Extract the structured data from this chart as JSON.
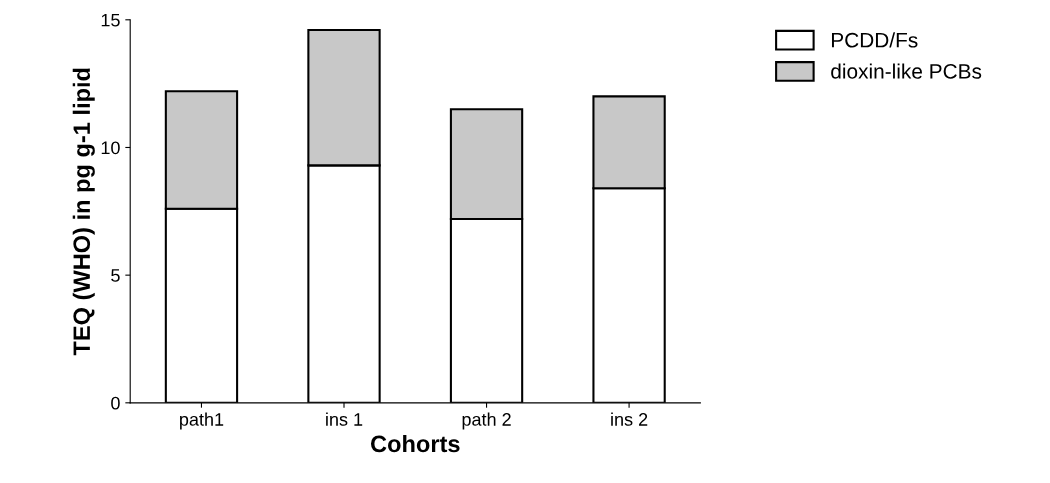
{
  "chart_data": {
    "type": "bar",
    "stacked": true,
    "xlabel": "Cohorts",
    "ylabel": "TEQ (WHO) in pg g-1 lipid",
    "categories": [
      "path1",
      "ins 1",
      "path 2",
      "ins 2"
    ],
    "series": [
      {
        "name": "PCDD/Fs",
        "color": "#ffffff",
        "values": [
          7.6,
          9.3,
          7.2,
          8.4
        ]
      },
      {
        "name": "dioxin-like PCBs",
        "color": "#c8c8c8",
        "values": [
          4.6,
          5.3,
          4.3,
          3.6
        ]
      }
    ],
    "ylim": [
      0,
      15
    ],
    "yticks": [
      0,
      5,
      10,
      15
    ],
    "grid": false,
    "legend": "top right"
  }
}
